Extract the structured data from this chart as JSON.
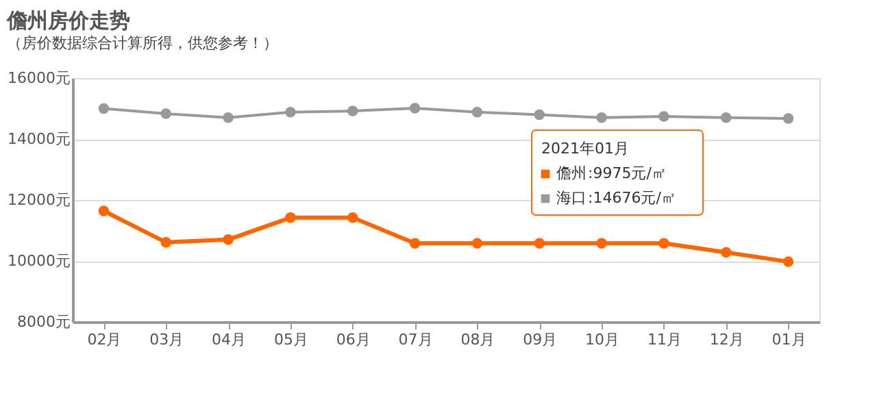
{
  "chart_data": {
    "type": "line",
    "title": "儋州房价走势",
    "subtitle": "（房价数据综合计算所得，供您参考！）",
    "categories": [
      "02月",
      "03月",
      "04月",
      "05月",
      "06月",
      "07月",
      "08月",
      "09月",
      "10月",
      "11月",
      "12月",
      "01月"
    ],
    "series": [
      {
        "name": "儋州",
        "color": "#ff6600",
        "values": [
          11640,
          10610,
          10700,
          11420,
          11420,
          10580,
          10580,
          10580,
          10580,
          10580,
          10280,
          9975
        ]
      },
      {
        "name": "海口",
        "color": "#999999",
        "values": [
          15000,
          14830,
          14700,
          14880,
          14920,
          15010,
          14880,
          14800,
          14700,
          14740,
          14700,
          14676
        ]
      }
    ],
    "annotations": [
      "2021年01月",
      ":9975元/㎡",
      ":14676元/㎡"
    ],
    "legend": "right",
    "ylim": [
      8000,
      16000
    ],
    "yticks": [
      {
        "value": 8000,
        "label": "8000元"
      },
      {
        "value": 10000,
        "label": "10000元"
      },
      {
        "value": 12000,
        "label": "12000元"
      },
      {
        "value": 14000,
        "label": "14000元"
      },
      {
        "value": 16000,
        "label": "16000元"
      }
    ],
    "grid": "y",
    "marker": "circle",
    "line_style": "solid"
  }
}
